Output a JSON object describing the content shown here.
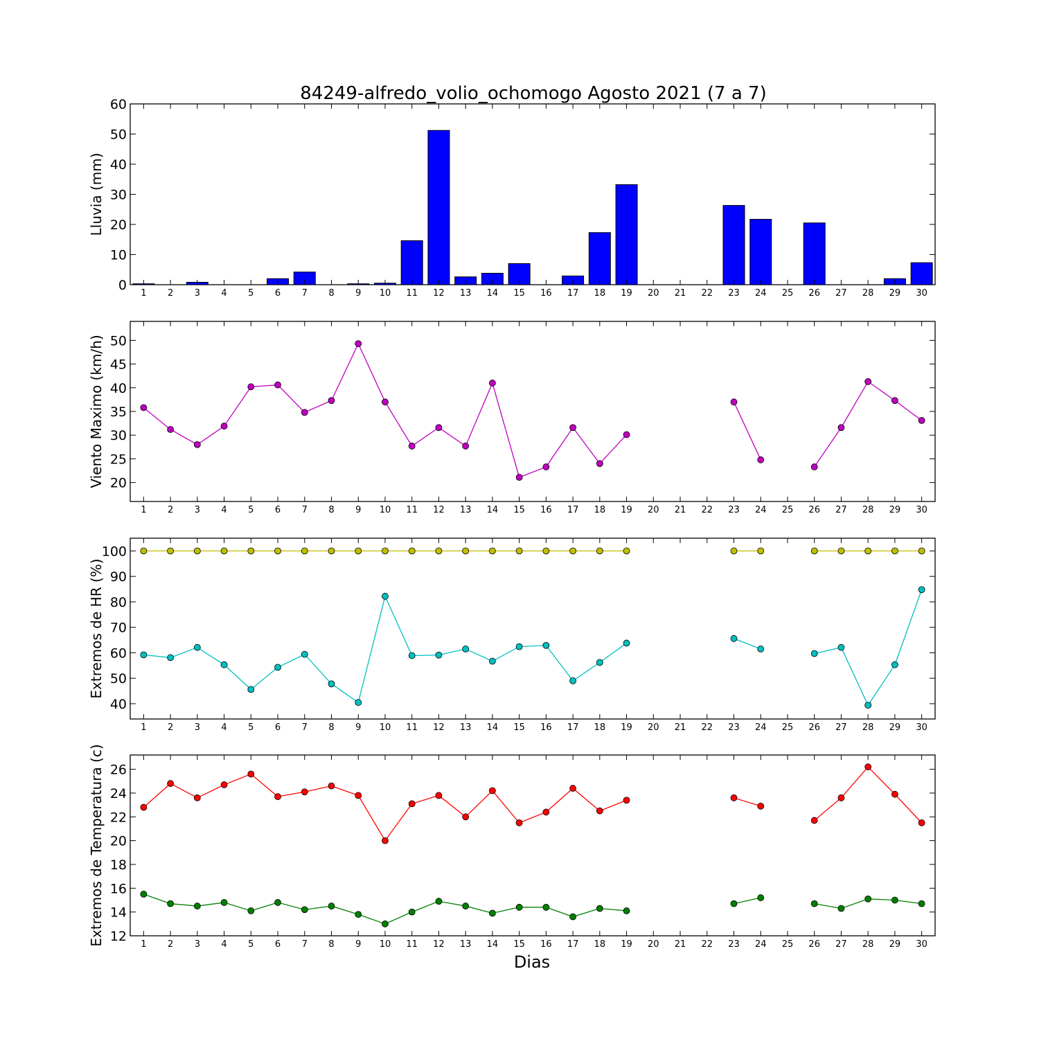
{
  "chart_data": {
    "title": "84249-alfredo_volio_ochomogo Agosto 2021  (7 a 7)",
    "xlabel": "Dias",
    "days": [
      1,
      2,
      3,
      4,
      5,
      6,
      7,
      8,
      9,
      10,
      11,
      12,
      13,
      14,
      15,
      16,
      17,
      18,
      19,
      20,
      21,
      22,
      23,
      24,
      25,
      26,
      27,
      28,
      29,
      30
    ],
    "panels": [
      {
        "type": "bar",
        "ylabel": "Lluvia (mm)",
        "ylim": [
          0,
          60
        ],
        "yticks": [
          0,
          10,
          20,
          30,
          40,
          50,
          60
        ],
        "series": [
          {
            "color": "#0000ff",
            "values": [
              0.3,
              0,
              0.8,
              0,
              0,
              2.0,
              4.2,
              0,
              0.3,
              0.5,
              14.6,
              51.2,
              2.6,
              3.8,
              7.0,
              0,
              2.9,
              17.3,
              33.2,
              0,
              0,
              0,
              26.3,
              21.7,
              0,
              20.5,
              0,
              0,
              2.0,
              7.3
            ]
          }
        ]
      },
      {
        "type": "line",
        "ylabel": "Viento Maximo (km/h)",
        "ylim": [
          16,
          54
        ],
        "yticks": [
          20,
          25,
          30,
          35,
          40,
          45,
          50
        ],
        "series": [
          {
            "color": "#bf00bf",
            "values": [
              35.8,
              31.2,
              28.0,
              31.9,
              40.2,
              40.6,
              34.8,
              37.3,
              49.3,
              37.0,
              27.7,
              31.6,
              27.7,
              41.0,
              21.1,
              23.3,
              31.6,
              24.0,
              30.1,
              null,
              null,
              null,
              37.0,
              24.8,
              null,
              23.3,
              31.6,
              41.3,
              37.3,
              33.1
            ]
          }
        ]
      },
      {
        "type": "line",
        "ylabel": "Extremos de HR (%)",
        "ylim": [
          34,
          105
        ],
        "yticks": [
          40,
          50,
          60,
          70,
          80,
          90,
          100
        ],
        "series": [
          {
            "color": "#bfbf00",
            "values": [
              100,
              100,
              100,
              100,
              100,
              100,
              100,
              100,
              100,
              100,
              100,
              100,
              100,
              100,
              100,
              100,
              100,
              100,
              100,
              null,
              null,
              null,
              100,
              100,
              null,
              100,
              100,
              100,
              100,
              100
            ]
          },
          {
            "color": "#00bfbf",
            "values": [
              59.2,
              58.1,
              62.1,
              55.3,
              45.6,
              54.3,
              59.4,
              47.8,
              40.5,
              82.2,
              58.9,
              59.1,
              61.5,
              56.7,
              62.4,
              62.9,
              49.0,
              56.2,
              63.8,
              null,
              null,
              null,
              65.6,
              61.5,
              null,
              59.7,
              62.1,
              39.4,
              55.3,
              84.8
            ]
          }
        ]
      },
      {
        "type": "line",
        "ylabel": "Extremos de Temperatura (c)",
        "ylim": [
          12,
          27.2
        ],
        "yticks": [
          12,
          14,
          16,
          18,
          20,
          22,
          24,
          26
        ],
        "series": [
          {
            "color": "#ff0000",
            "values": [
              22.8,
              24.8,
              23.6,
              24.7,
              25.6,
              23.7,
              24.1,
              24.6,
              23.8,
              20.0,
              23.1,
              23.8,
              22.0,
              24.2,
              21.5,
              22.4,
              24.4,
              22.5,
              23.4,
              null,
              null,
              null,
              23.6,
              22.9,
              null,
              21.7,
              23.6,
              26.2,
              23.9,
              21.5
            ]
          },
          {
            "color": "#008000",
            "values": [
              15.5,
              14.7,
              14.5,
              14.8,
              14.1,
              14.8,
              14.2,
              14.5,
              13.8,
              13.0,
              14.0,
              14.9,
              14.5,
              13.9,
              14.4,
              14.4,
              13.6,
              14.3,
              14.1,
              null,
              null,
              null,
              14.7,
              15.2,
              null,
              14.7,
              14.3,
              15.1,
              15.0,
              14.7
            ]
          }
        ]
      }
    ]
  }
}
